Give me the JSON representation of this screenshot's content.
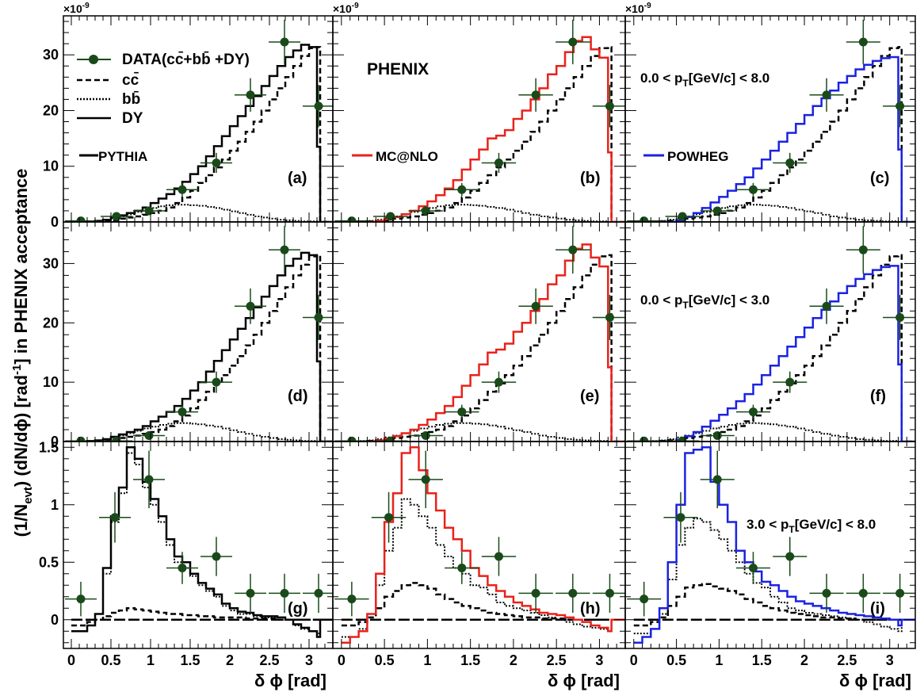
{
  "figure": {
    "y_axis_title": "(1/N",
    "y_axis_title_sub": "evt",
    "y_axis_title_rest": ") (dN/dϕ) [rad",
    "y_axis_title_sup": "-1",
    "y_axis_title_end": "] in PHENIX acceptance",
    "x_axis_title": "δ ϕ [rad]",
    "exponent_label": "×10",
    "exponent_power": "-9",
    "experiment_label": "PHENIX",
    "colors": {
      "data_marker": "#1a4a1a",
      "pythia": "#000000",
      "mcatnlo": "#e8221b",
      "powheg": "#1a22e0",
      "frame": "#000000"
    }
  },
  "legend": {
    "data": "DATA(cc̄+bb̄ +DY)",
    "cc": "cc̄",
    "bb": "bb̄",
    "dy": "DY",
    "pythia": "PYTHIA",
    "mcatnlo": "MC@NLO",
    "powheg": "POWHEG"
  },
  "pt_labels": {
    "row1": {
      "pre": "0.0 < p",
      "sub": "T",
      "post": "[GeV/c] < 8.0"
    },
    "row2": {
      "pre": "0.0 < p",
      "sub": "T",
      "post": "[GeV/c] < 3.0"
    },
    "row3": {
      "pre": "3.0 < p",
      "sub": "T",
      "post": "[GeV/c] < 8.0"
    }
  },
  "chart_data": {
    "type": "line",
    "x_ticks": [
      "0",
      "0.5",
      "1",
      "1.5",
      "2",
      "2.5",
      "3"
    ],
    "x_range": [
      -0.1,
      3.3
    ],
    "bin_edges": [
      0.0,
      0.1,
      0.2,
      0.3,
      0.4,
      0.5,
      0.6,
      0.7,
      0.8,
      0.9,
      1.0,
      1.1,
      1.2,
      1.3,
      1.4,
      1.5,
      1.6,
      1.7,
      1.8,
      1.9,
      2.0,
      2.1,
      2.2,
      2.3,
      2.4,
      2.5,
      2.6,
      2.7,
      2.8,
      2.9,
      3.0,
      3.1,
      3.14,
      3.3
    ],
    "rows": [
      {
        "y_range": [
          0,
          37
        ],
        "y_ticks": [
          0,
          10,
          20,
          30
        ],
        "unit_scale": "1e-9",
        "data": {
          "x": [
            0.12,
            0.57,
            0.98,
            1.4,
            1.83,
            2.26,
            2.69,
            3.12
          ],
          "y": [
            0.2,
            1.0,
            2.0,
            5.8,
            10.6,
            22.8,
            32.3,
            20.8
          ],
          "y_err": [
            0.3,
            0.4,
            0.7,
            1.2,
            1.8,
            3.0,
            4.0,
            3.8
          ],
          "x_err": 0.2
        },
        "cc": [
          0.0,
          0.0,
          0.0,
          0.1,
          0.2,
          0.3,
          0.6,
          0.8,
          1.0,
          1.3,
          1.6,
          2.0,
          2.6,
          3.4,
          4.4,
          5.6,
          7.0,
          8.4,
          9.8,
          11.2,
          12.8,
          14.4,
          16.2,
          18.0,
          20.0,
          22.0,
          24.0,
          26.0,
          28.0,
          29.8,
          31.2,
          31.4,
          0.0
        ],
        "bb": [
          0.0,
          0.0,
          0.1,
          0.2,
          0.4,
          0.7,
          1.0,
          1.4,
          1.8,
          2.2,
          2.5,
          2.8,
          3.0,
          3.1,
          3.1,
          3.0,
          2.9,
          2.7,
          2.5,
          2.2,
          1.9,
          1.6,
          1.3,
          1.0,
          0.8,
          0.6,
          0.4,
          0.3,
          0.2,
          0.1,
          0.1,
          0.0,
          0.0
        ],
        "dy": [
          0.0,
          0.0,
          0.0,
          0.0,
          0.0,
          0.0,
          0.0,
          0.0,
          0.0,
          0.0,
          0.0,
          0.0,
          0.0,
          0.0,
          0.0,
          0.0,
          0.0,
          0.0,
          0.0,
          0.0,
          0.0,
          0.0,
          0.0,
          0.0,
          0.0,
          0.0,
          0.0,
          0.0,
          0.0,
          0.0,
          0.0,
          0.0,
          0.0
        ],
        "pythia_total": [
          0.0,
          0.0,
          0.1,
          0.2,
          0.4,
          0.8,
          1.2,
          1.6,
          2.0,
          2.6,
          3.4,
          4.2,
          5.0,
          6.0,
          7.2,
          8.6,
          10.0,
          11.8,
          13.6,
          15.4,
          17.2,
          19.0,
          20.8,
          22.6,
          24.4,
          26.2,
          28.0,
          29.6,
          30.8,
          31.8,
          31.4,
          13.5,
          0.0
        ],
        "mcnlo_total": [
          0.0,
          0.0,
          0.0,
          0.0,
          0.2,
          0.5,
          0.9,
          1.4,
          2.0,
          2.8,
          3.7,
          4.8,
          6.0,
          7.5,
          9.4,
          11.2,
          13.0,
          15.0,
          15.5,
          16.5,
          18.5,
          20.0,
          22.0,
          24.0,
          26.5,
          28.0,
          30.5,
          32.5,
          33.2,
          31.0,
          29.5,
          12.5,
          0.0
        ],
        "powheg_total": [
          0.0,
          0.0,
          0.0,
          0.0,
          0.0,
          0.3,
          0.9,
          1.6,
          2.5,
          3.5,
          4.5,
          5.6,
          6.8,
          8.0,
          9.6,
          11.2,
          12.8,
          14.4,
          16.0,
          17.6,
          19.2,
          20.8,
          22.2,
          23.6,
          25.0,
          26.2,
          27.4,
          28.2,
          28.9,
          29.4,
          29.6,
          13.0,
          0.0
        ]
      },
      {
        "y_range": [
          0,
          37
        ],
        "y_ticks": [
          0,
          10,
          20,
          30
        ],
        "unit_scale": "1e-9",
        "data": {
          "x": [
            0.12,
            0.57,
            0.98,
            1.4,
            1.83,
            2.26,
            2.69,
            3.12
          ],
          "y": [
            0.1,
            0.1,
            1.0,
            5.0,
            10.0,
            22.8,
            32.3,
            20.9
          ],
          "y_err": [
            0.3,
            0.4,
            0.7,
            1.2,
            1.8,
            3.0,
            4.0,
            3.8
          ],
          "x_err": 0.2
        },
        "cc": [
          0.0,
          0.0,
          0.0,
          0.1,
          0.2,
          0.3,
          0.6,
          0.8,
          1.0,
          1.3,
          1.6,
          2.0,
          2.6,
          3.4,
          4.4,
          5.6,
          7.0,
          8.4,
          9.8,
          11.2,
          12.8,
          14.4,
          16.2,
          18.0,
          20.0,
          22.0,
          24.0,
          26.0,
          28.0,
          29.8,
          31.2,
          31.4,
          0.0
        ],
        "bb": [
          0.0,
          0.0,
          0.1,
          0.2,
          0.4,
          0.7,
          1.0,
          1.4,
          1.8,
          2.2,
          2.5,
          2.8,
          3.0,
          3.1,
          3.1,
          3.0,
          2.9,
          2.7,
          2.5,
          2.2,
          1.9,
          1.6,
          1.3,
          1.0,
          0.8,
          0.6,
          0.4,
          0.3,
          0.2,
          0.1,
          0.1,
          0.0,
          0.0
        ],
        "dy": [
          0.0,
          0.0,
          0.0,
          0.0,
          0.0,
          0.0,
          0.0,
          0.0,
          0.0,
          0.0,
          0.0,
          0.0,
          0.0,
          0.0,
          0.0,
          0.0,
          0.0,
          0.0,
          0.0,
          0.0,
          0.0,
          0.0,
          0.0,
          0.0,
          0.0,
          0.0,
          0.0,
          0.0,
          0.0,
          0.0,
          0.0,
          0.0,
          0.0
        ],
        "pythia_total": [
          0.0,
          0.0,
          0.1,
          0.2,
          0.4,
          0.8,
          1.2,
          1.6,
          2.0,
          2.6,
          3.4,
          4.2,
          5.0,
          6.0,
          7.2,
          8.6,
          10.0,
          11.8,
          13.6,
          15.4,
          17.2,
          19.0,
          20.8,
          22.6,
          24.4,
          26.2,
          28.0,
          29.6,
          30.8,
          31.8,
          31.4,
          13.5,
          0.0
        ],
        "mcnlo_total": [
          0.0,
          0.0,
          0.0,
          0.0,
          0.2,
          0.5,
          0.9,
          1.4,
          2.0,
          2.8,
          3.7,
          4.8,
          6.0,
          7.5,
          9.4,
          11.2,
          13.0,
          15.0,
          15.5,
          16.5,
          18.5,
          20.0,
          22.0,
          24.0,
          26.5,
          28.0,
          30.5,
          32.5,
          33.2,
          31.0,
          29.5,
          12.5,
          0.0
        ],
        "powheg_total": [
          0.0,
          0.0,
          0.0,
          0.0,
          0.0,
          0.3,
          0.9,
          1.6,
          2.5,
          3.5,
          4.5,
          5.6,
          6.8,
          8.0,
          9.6,
          11.2,
          12.8,
          14.4,
          16.0,
          17.6,
          19.2,
          20.8,
          22.2,
          23.6,
          25.0,
          26.2,
          27.4,
          28.2,
          28.9,
          29.4,
          29.6,
          13.0,
          0.0
        ]
      },
      {
        "y_range": [
          -0.25,
          1.55
        ],
        "y_ticks": [
          0,
          0.5,
          1,
          1.5
        ],
        "y_tick_labels": [
          "0",
          "0.5",
          "1",
          "1.5"
        ],
        "data": {
          "x": [
            0.12,
            0.55,
            0.98,
            1.4,
            1.83,
            2.26,
            2.69,
            3.12
          ],
          "y": [
            0.18,
            0.89,
            1.22,
            0.45,
            0.55,
            0.23,
            0.23,
            0.23
          ],
          "y_err": [
            0.15,
            0.22,
            0.25,
            0.14,
            0.17,
            0.17,
            0.17,
            0.17
          ],
          "x_err": 0.2
        },
        "cc_pythia": [
          -0.05,
          -0.05,
          -0.02,
          0.0,
          0.03,
          0.06,
          0.08,
          0.1,
          0.09,
          0.08,
          0.07,
          0.06,
          0.05,
          0.05,
          0.04,
          0.04,
          0.03,
          0.03,
          0.02,
          0.02,
          0.02,
          0.02,
          0.01,
          0.01,
          0.01,
          0.01,
          0.0,
          0.0,
          0.0,
          0.0,
          0.0,
          0.0,
          0.0
        ],
        "bb_pythia": [
          -0.1,
          -0.1,
          -0.05,
          0.05,
          0.4,
          0.85,
          1.1,
          1.45,
          1.35,
          1.15,
          1.0,
          0.85,
          0.65,
          0.5,
          0.45,
          0.38,
          0.3,
          0.25,
          0.2,
          0.12,
          0.08,
          0.05,
          0.05,
          0.03,
          0.02,
          0.02,
          0.02,
          0.0,
          -0.05,
          -0.08,
          -0.1,
          -0.12,
          0.0
        ],
        "dy": [
          0.0,
          0.0,
          0.0,
          0.0,
          0.0,
          0.0,
          0.0,
          0.0,
          0.0,
          0.0,
          0.0,
          0.0,
          0.0,
          0.0,
          0.0,
          0.0,
          0.0,
          0.0,
          0.0,
          0.0,
          0.0,
          0.0,
          0.0,
          0.0,
          0.0,
          0.0,
          0.0,
          0.0,
          0.0,
          0.0,
          0.0,
          0.0,
          0.0
        ],
        "pythia_total": [
          -0.1,
          -0.1,
          -0.05,
          0.05,
          0.45,
          0.9,
          1.15,
          1.5,
          1.4,
          1.2,
          1.05,
          0.9,
          0.7,
          0.55,
          0.5,
          0.4,
          0.32,
          0.27,
          0.22,
          0.14,
          0.1,
          0.07,
          0.06,
          0.04,
          0.03,
          0.03,
          0.02,
          0.0,
          -0.04,
          -0.07,
          -0.1,
          -0.15,
          0.0
        ],
        "cc_mcnlo": [
          -0.05,
          -0.05,
          -0.02,
          0.02,
          0.1,
          0.2,
          0.25,
          0.3,
          0.32,
          0.3,
          0.27,
          0.22,
          0.18,
          0.15,
          0.12,
          0.1,
          0.08,
          0.06,
          0.05,
          0.04,
          0.03,
          0.02,
          0.02,
          0.01,
          0.01,
          0.01,
          0.0,
          0.0,
          0.0,
          0.0,
          0.0,
          0.0,
          0.0
        ],
        "bb_mcnlo": [
          -0.15,
          -0.15,
          -0.08,
          0.05,
          0.3,
          0.6,
          0.8,
          1.05,
          1.0,
          0.9,
          0.8,
          0.65,
          0.55,
          0.45,
          0.4,
          0.3,
          0.28,
          0.22,
          0.15,
          0.12,
          0.1,
          0.08,
          0.06,
          0.04,
          0.02,
          0.0,
          -0.02,
          -0.04,
          -0.06,
          -0.07,
          -0.08,
          -0.1,
          0.0
        ],
        "mcnlo_total": [
          -0.2,
          -0.15,
          -0.1,
          0.05,
          0.4,
          0.85,
          1.1,
          1.45,
          1.5,
          1.3,
          1.1,
          0.95,
          0.8,
          0.7,
          0.6,
          0.45,
          0.38,
          0.3,
          0.25,
          0.2,
          0.15,
          0.12,
          0.09,
          0.06,
          0.05,
          0.04,
          0.02,
          0.0,
          -0.02,
          -0.05,
          -0.07,
          -0.1,
          0.0
        ],
        "cc_powheg": [
          -0.05,
          -0.05,
          -0.02,
          0.02,
          0.12,
          0.2,
          0.28,
          0.3,
          0.31,
          0.29,
          0.27,
          0.25,
          0.22,
          0.18,
          0.15,
          0.12,
          0.1,
          0.08,
          0.06,
          0.05,
          0.04,
          0.03,
          0.02,
          0.02,
          0.01,
          0.01,
          0.0,
          0.0,
          0.0,
          0.0,
          0.0,
          0.0,
          0.0
        ],
        "bb_powheg": [
          -0.12,
          -0.12,
          -0.08,
          0.05,
          0.35,
          0.65,
          0.8,
          0.88,
          0.85,
          0.78,
          0.7,
          0.6,
          0.5,
          0.4,
          0.32,
          0.28,
          0.2,
          0.15,
          0.1,
          0.08,
          0.06,
          0.05,
          0.04,
          0.03,
          0.02,
          0.01,
          0.0,
          -0.02,
          -0.04,
          -0.06,
          -0.08,
          -0.1,
          0.0
        ],
        "powheg_total": [
          -0.2,
          -0.15,
          -0.08,
          0.1,
          0.5,
          1.0,
          1.45,
          1.48,
          1.5,
          1.2,
          1.0,
          0.85,
          0.6,
          0.5,
          0.42,
          0.33,
          0.3,
          0.25,
          0.2,
          0.16,
          0.14,
          0.12,
          0.1,
          0.08,
          0.06,
          0.05,
          0.04,
          0.03,
          0.02,
          0.01,
          0.0,
          -0.05,
          0.0
        ]
      }
    ],
    "panel_labels": [
      "(a)",
      "(b)",
      "(c)",
      "(d)",
      "(e)",
      "(f)",
      "(g)",
      "(h)",
      "(i)"
    ]
  }
}
